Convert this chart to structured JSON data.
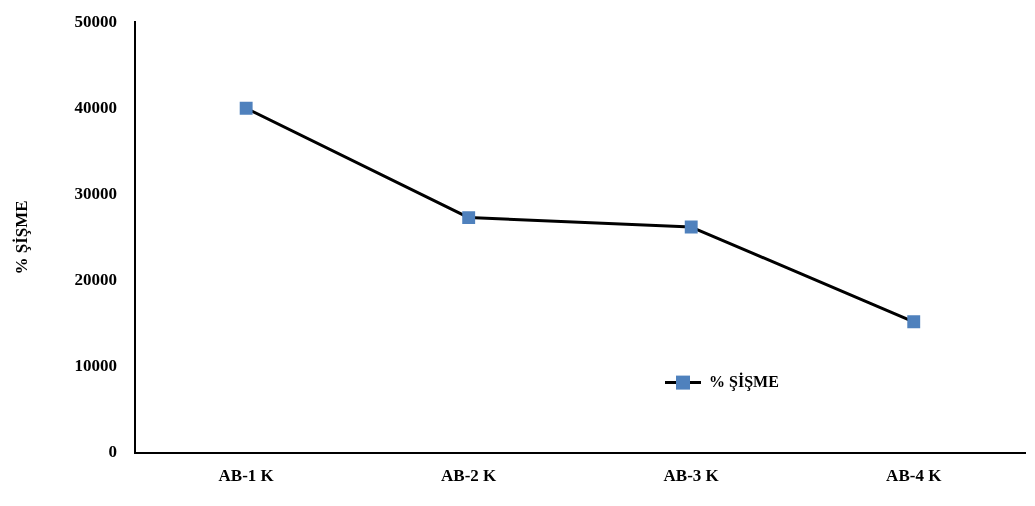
{
  "chart_data": {
    "type": "line",
    "ylabel": "% ŞİŞME",
    "categories": [
      "AB-1 K",
      "AB-2 K",
      "AB-3 K",
      "AB-4 K"
    ],
    "series": [
      {
        "name": "% ŞİŞME",
        "color": "#4f81bd",
        "values": [
          40000,
          27300,
          26200,
          15200
        ]
      }
    ],
    "ylim": [
      0,
      50000
    ],
    "yticks": [
      0,
      10000,
      20000,
      30000,
      40000,
      50000
    ],
    "grid": false,
    "legend": "bottom right",
    "marker": "square",
    "line_style": "solid"
  }
}
